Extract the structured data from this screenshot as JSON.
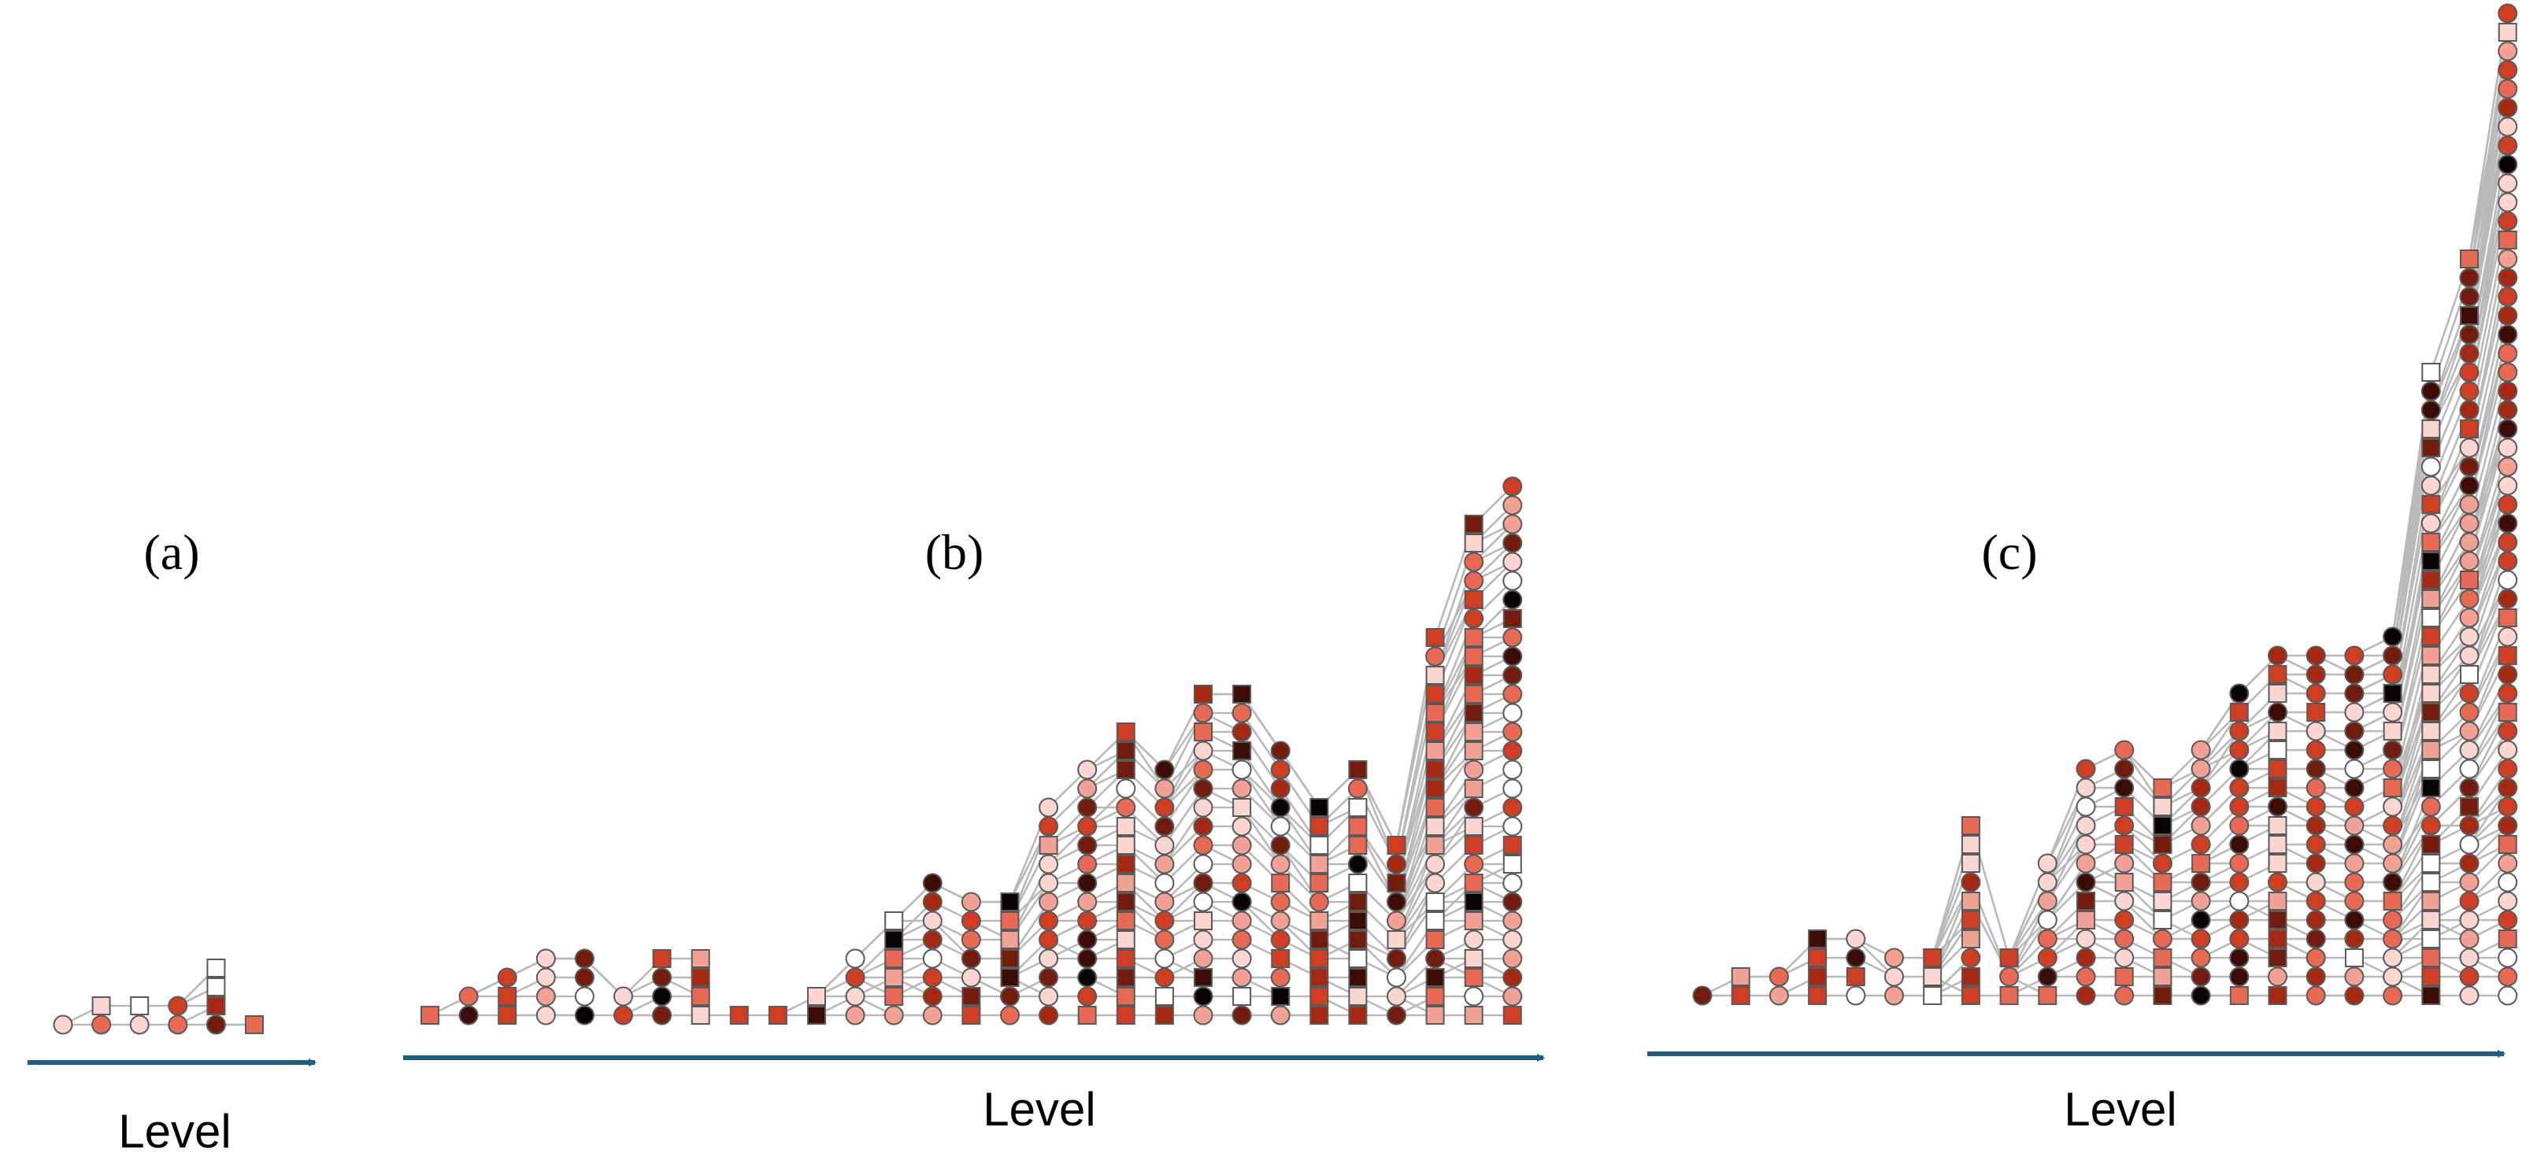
{
  "panels": [
    {
      "label": "(a)",
      "axis_label": "Level",
      "levels": [
        [
          "c1"
        ],
        [
          "c3",
          "s1"
        ],
        [
          "c1",
          "s0"
        ],
        [
          "c3",
          "c4"
        ],
        [
          "c6",
          "s5",
          "s0",
          "s0"
        ],
        [
          "s3"
        ]
      ],
      "counts": [
        1,
        2,
        2,
        2,
        4,
        1
      ]
    },
    {
      "label": "(b)",
      "axis_label": "Level",
      "counts": [
        1,
        2,
        3,
        4,
        4,
        2,
        4,
        4,
        1,
        1,
        2,
        4,
        6,
        8,
        7,
        7,
        12,
        14,
        16,
        14,
        18,
        18,
        15,
        12,
        14,
        10,
        21,
        27,
        29
      ]
    },
    {
      "label": "(c)",
      "axis_label": "Level",
      "counts": [
        1,
        2,
        2,
        4,
        4,
        3,
        3,
        10,
        3,
        8,
        13,
        14,
        12,
        14,
        17,
        19,
        19,
        19,
        20,
        34,
        40,
        53
      ]
    }
  ],
  "colors": {
    "palette": [
      "#ffffff",
      "#fbd5cf",
      "#f2a294",
      "#e86a55",
      "#cf3d22",
      "#a52812",
      "#721c0e",
      "#3e0c06",
      "#0a0303"
    ],
    "edge": "#b9b9b9",
    "axis": "#1f5e7c"
  }
}
